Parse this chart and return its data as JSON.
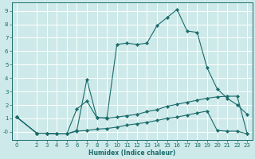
{
  "title": "",
  "xlabel": "Humidex (Indice chaleur)",
  "background_color": "#cee9e9",
  "grid_color": "#ffffff",
  "line_color": "#1a6b6b",
  "xlim": [
    -0.5,
    23.5
  ],
  "ylim": [
    -0.6,
    9.6
  ],
  "xticks": [
    0,
    2,
    3,
    4,
    5,
    6,
    7,
    8,
    9,
    10,
    11,
    12,
    13,
    14,
    15,
    16,
    17,
    18,
    19,
    20,
    21,
    22,
    23
  ],
  "yticks": [
    0,
    1,
    2,
    3,
    4,
    5,
    6,
    7,
    8,
    9
  ],
  "ytick_labels": [
    "-0",
    "1",
    "2",
    "3",
    "4",
    "5",
    "6",
    "7",
    "8",
    "9"
  ],
  "line1_x": [
    0,
    2,
    3,
    4,
    5,
    6,
    7,
    8,
    9,
    10,
    11,
    12,
    13,
    14,
    15,
    16,
    17,
    18,
    19,
    20,
    21,
    22,
    23
  ],
  "line1_y": [
    1.1,
    -0.1,
    -0.1,
    -0.15,
    -0.15,
    1.7,
    2.3,
    1.05,
    1.05,
    6.5,
    6.6,
    6.5,
    6.6,
    7.9,
    8.5,
    9.1,
    7.5,
    7.4,
    4.75,
    3.2,
    2.5,
    2.0,
    1.3
  ],
  "line2_x": [
    0,
    2,
    3,
    4,
    5,
    6,
    7,
    8,
    9,
    10,
    11,
    12,
    13,
    14,
    15,
    16,
    17,
    18,
    19,
    20,
    21,
    22,
    23
  ],
  "line2_y": [
    1.1,
    -0.1,
    -0.1,
    -0.15,
    -0.15,
    0.1,
    3.9,
    1.05,
    1.0,
    1.1,
    1.2,
    1.3,
    1.5,
    1.65,
    1.9,
    2.05,
    2.2,
    2.35,
    2.5,
    2.6,
    2.65,
    2.65,
    -0.15
  ],
  "line3_x": [
    0,
    2,
    3,
    4,
    5,
    6,
    7,
    8,
    9,
    10,
    11,
    12,
    13,
    14,
    15,
    16,
    17,
    18,
    19,
    20,
    21,
    22,
    23
  ],
  "line3_y": [
    1.1,
    -0.1,
    -0.1,
    -0.15,
    -0.15,
    0.05,
    0.1,
    0.2,
    0.25,
    0.35,
    0.5,
    0.6,
    0.7,
    0.85,
    1.0,
    1.1,
    1.25,
    1.4,
    1.55,
    0.1,
    0.05,
    0.05,
    -0.15
  ]
}
